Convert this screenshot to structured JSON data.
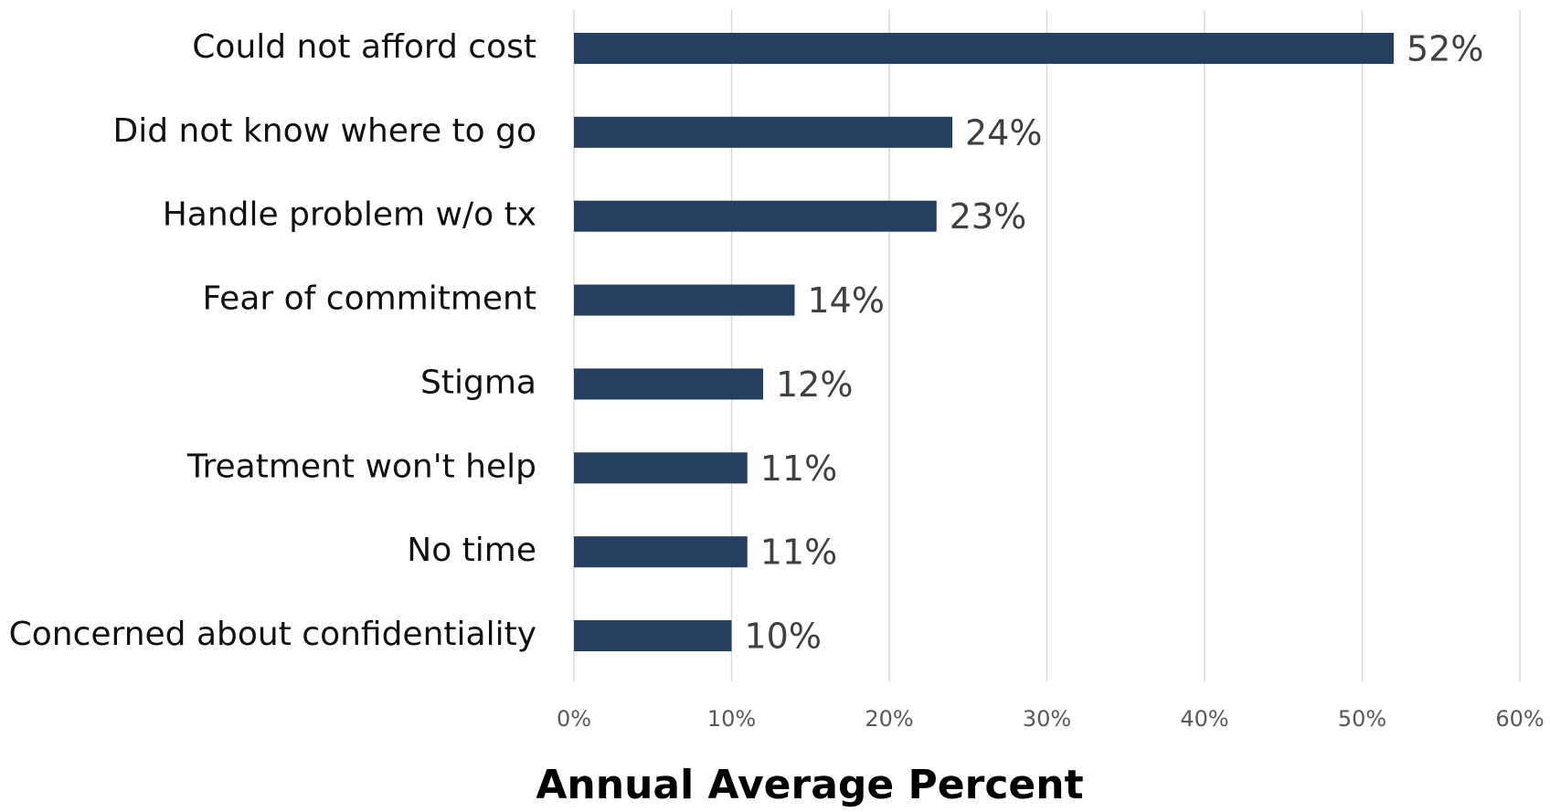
{
  "chart_data": {
    "type": "hbar",
    "x_label": "Annual Average Percent",
    "categories": [
      "Could not afford cost",
      "Did not know where to go",
      "Handle problem w/o tx",
      "Fear of commitment",
      "Stigma",
      "Treatment won't help",
      "No time",
      "Concerned about confidentiality"
    ],
    "values": [
      52,
      24,
      23,
      14,
      12,
      11,
      11,
      10
    ],
    "value_labels": [
      "52%",
      "24%",
      "23%",
      "14%",
      "12%",
      "11%",
      "11%",
      "10%"
    ],
    "color": "#243f60",
    "xlim": [
      0,
      60
    ],
    "xticks": [
      {
        "value": 0,
        "label": "0%"
      },
      {
        "value": 10,
        "label": "10%"
      },
      {
        "value": 20,
        "label": "20%"
      },
      {
        "value": 30,
        "label": "30%"
      },
      {
        "value": 40,
        "label": "40%"
      },
      {
        "value": 50,
        "label": "50%"
      },
      {
        "value": 60,
        "label": "60%"
      }
    ],
    "grid": true
  }
}
